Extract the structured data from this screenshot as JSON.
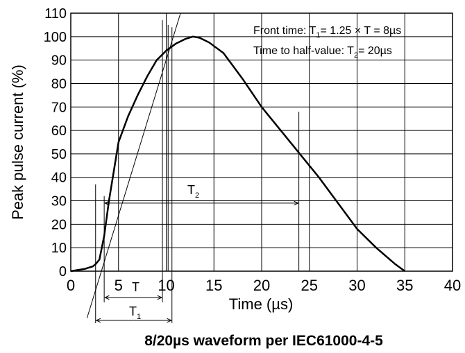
{
  "chart_data": {
    "type": "line",
    "title": "",
    "caption": "8/20µs waveform per IEC61000-4-5",
    "xlabel_main": "Time (",
    "xlabel_mu": "µ",
    "xlabel_tail": "s)",
    "ylabel": "Peak pulse current (%)",
    "xlim": [
      0,
      40
    ],
    "ylim": [
      0,
      110
    ],
    "xticks": [
      0,
      5,
      10,
      15,
      20,
      25,
      30,
      35,
      40
    ],
    "yticks": [
      0,
      10,
      20,
      30,
      40,
      50,
      60,
      70,
      80,
      90,
      100,
      110
    ],
    "grid": true,
    "series": [
      {
        "x": [
          0,
          1.5,
          2.3,
          2.6,
          3.0,
          3.5,
          4.0,
          5.0,
          6.0,
          7.0,
          8.0,
          9.0,
          10.0,
          11.0,
          12.0,
          12.8,
          13.5,
          14.5,
          16.0,
          18.0,
          20.0,
          22.0,
          24.0,
          26.0,
          28.0,
          30.0,
          32.0,
          34.0,
          35.0
        ],
        "y": [
          0,
          1,
          2,
          3,
          5,
          15,
          30,
          55,
          66,
          75,
          83,
          90,
          94,
          97,
          99,
          100,
          99.5,
          97.5,
          93,
          82,
          70,
          60,
          50,
          40,
          29,
          18,
          10,
          3,
          0
        ]
      }
    ],
    "front_line": {
      "x": [
        1.7,
        11.5
      ],
      "y": [
        -20,
        110
      ]
    },
    "annotations": {
      "front_time_prefix": "Front time: T",
      "front_time_sub": "1",
      "front_time_suffix": "= 1.25 × T = 8µs",
      "half_value_prefix": "Time to half-value: T",
      "half_value_sub": "2",
      "half_value_suffix": "= 20µs",
      "t_label": "T",
      "t1_label": "T",
      "t1_sub": "1",
      "t2_label": "T",
      "t2_sub": "2"
    },
    "markers": {
      "t_start": 3.5,
      "t_end": 9.6,
      "t1_start": 2.6,
      "t1_end": 10.6,
      "t1_start_top": 37,
      "t2_start": 3.5,
      "t2_end": 23.9,
      "t2_arrow_y": 29,
      "t2_line_top": 68,
      "peak_markers": [
        9.6,
        10.2,
        10.6
      ]
    }
  }
}
